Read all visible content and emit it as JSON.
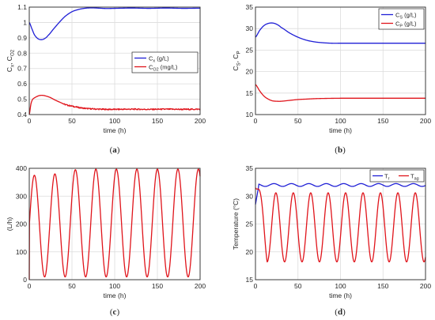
{
  "chart_data": [
    {
      "type": "line",
      "panel": "a",
      "caption": "(a)",
      "xlabel": "time (h)",
      "ylabel": "C_x, C_O2",
      "xlim": [
        0,
        200
      ],
      "ylim": [
        0.4,
        1.1
      ],
      "xticks": [
        "0",
        "50",
        "100",
        "150",
        "200"
      ],
      "yticks": [
        "0.4",
        "0.5",
        "0.6",
        "0.7",
        "0.8",
        "0.9",
        "1",
        "1.1"
      ],
      "grid": true,
      "legend_position": "right",
      "series": [
        {
          "name": "C_x (g/L)",
          "color": "#1f1fd6",
          "x": [
            0,
            3,
            6,
            10,
            14,
            18,
            22,
            28,
            35,
            42,
            50,
            58,
            66,
            74,
            82,
            90,
            100,
            120,
            140,
            160,
            180,
            200
          ],
          "y": [
            1.0,
            0.96,
            0.92,
            0.895,
            0.888,
            0.895,
            0.915,
            0.955,
            1.0,
            1.04,
            1.07,
            1.085,
            1.093,
            1.095,
            1.093,
            1.091,
            1.092,
            1.094,
            1.092,
            1.094,
            1.092,
            1.093
          ]
        },
        {
          "name": "C_O2 (mg/L)",
          "color": "#e0141b",
          "x": [
            0,
            2,
            4,
            8,
            12,
            16,
            20,
            25,
            30,
            36,
            42,
            50,
            58,
            66,
            74,
            82,
            90,
            100,
            120,
            140,
            160,
            180,
            200
          ],
          "y": [
            0.4,
            0.47,
            0.5,
            0.515,
            0.524,
            0.525,
            0.52,
            0.51,
            0.495,
            0.48,
            0.465,
            0.455,
            0.446,
            0.44,
            0.437,
            0.435,
            0.434,
            0.434,
            0.435,
            0.434,
            0.435,
            0.434,
            0.435
          ],
          "noise": 0.004
        }
      ]
    },
    {
      "type": "line",
      "panel": "b",
      "caption": "(b)",
      "xlabel": "time (h)",
      "ylabel": "C_S, C_P",
      "xlim": [
        0,
        200
      ],
      "ylim": [
        10,
        35
      ],
      "xticks": [
        "0",
        "50",
        "100",
        "150",
        "200"
      ],
      "yticks": [
        "10",
        "15",
        "20",
        "25",
        "30",
        "35"
      ],
      "grid": true,
      "legend_position": "top-right",
      "series": [
        {
          "name": "C_S (g/L)",
          "color": "#1f1fd6",
          "x": [
            0,
            5,
            10,
            15,
            20,
            25,
            30,
            40,
            50,
            60,
            70,
            80,
            90,
            100,
            120,
            150,
            200
          ],
          "y": [
            28.0,
            29.6,
            30.7,
            31.2,
            31.3,
            31.0,
            30.3,
            29.0,
            28.0,
            27.3,
            26.9,
            26.7,
            26.6,
            26.6,
            26.6,
            26.6,
            26.6
          ]
        },
        {
          "name": "C_P (g/L)",
          "color": "#e0141b",
          "x": [
            0,
            5,
            10,
            15,
            20,
            25,
            30,
            40,
            50,
            60,
            70,
            80,
            100,
            150,
            200
          ],
          "y": [
            17.0,
            15.5,
            14.3,
            13.6,
            13.2,
            13.1,
            13.1,
            13.3,
            13.5,
            13.6,
            13.7,
            13.75,
            13.8,
            13.8,
            13.8
          ]
        }
      ]
    },
    {
      "type": "line",
      "panel": "c",
      "caption": "(c)",
      "xlabel": "time (h)",
      "ylabel": "(L/h)",
      "xlim": [
        0,
        200
      ],
      "ylim": [
        0,
        400
      ],
      "xticks": [
        "0",
        "50",
        "100",
        "150",
        "200"
      ],
      "yticks": [
        "0",
        "100",
        "200",
        "300",
        "400"
      ],
      "grid": true,
      "series": [
        {
          "color": "#e0141b",
          "oscillation": {
            "first_peak": 6,
            "period": 24,
            "min": 10,
            "first_peak_value": 375,
            "peak_values": [
              375,
              380,
              395,
              397,
              397,
              397,
              397,
              397,
              397
            ]
          },
          "start_value": 0,
          "end_value": 328
        }
      ]
    },
    {
      "type": "line",
      "panel": "d",
      "caption": "(d)",
      "xlabel": "time (h)",
      "ylabel": "Temperature (°C)",
      "xlim": [
        0,
        200
      ],
      "ylim": [
        15,
        35
      ],
      "xticks": [
        "0",
        "50",
        "100",
        "150",
        "200"
      ],
      "yticks": [
        "15",
        "20",
        "25",
        "30",
        "35"
      ],
      "grid": true,
      "legend_position": "top-right",
      "series": [
        {
          "name": "T_r",
          "color": "#1f1fd6",
          "base": 32.0,
          "ripple": 0.25,
          "start_value": 28.5
        },
        {
          "name": "T_ag",
          "color": "#e0141b",
          "oscillation": {
            "first_peak": 24,
            "period": 20.5,
            "min": 18.2,
            "max": 30.6
          },
          "start_value": 31.5,
          "end_value": 18.2
        }
      ]
    }
  ]
}
